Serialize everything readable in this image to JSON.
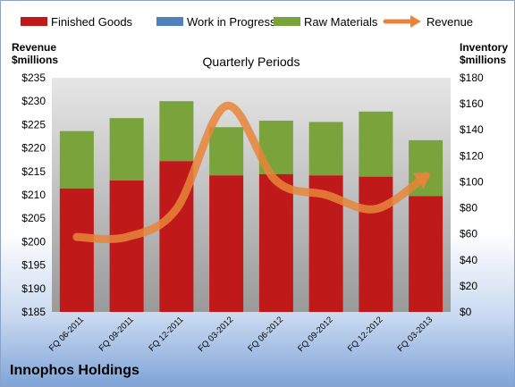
{
  "chart_data": {
    "type": "bar",
    "title": "Quarterly Periods",
    "company": "Innophos Holdings",
    "categories": [
      "FQ 06-2011",
      "FQ 09-2011",
      "FQ 12-2011",
      "FQ 03-2012",
      "FQ 06-2012",
      "FQ 09-2012",
      "FQ 12-2012",
      "FQ 03-2013"
    ],
    "stacked": true,
    "series": [
      {
        "name": "Finished Goods",
        "axis": "right",
        "color": "#c0191a",
        "values": [
          95,
          101,
          116,
          105,
          106,
          105,
          104,
          89
        ]
      },
      {
        "name": "Work in Progress",
        "axis": "right",
        "color": "#4f81bd",
        "values": [
          0,
          0,
          0,
          0,
          0,
          0,
          0,
          0
        ]
      },
      {
        "name": "Raw Materials",
        "axis": "right",
        "color": "#7aa33c",
        "values": [
          44,
          48,
          46,
          37,
          41,
          41,
          50,
          43
        ]
      }
    ],
    "line_series": {
      "name": "Revenue",
      "axis": "left",
      "color": "#e8853a",
      "values": [
        201,
        201,
        207,
        229,
        213,
        210,
        207,
        214
      ]
    },
    "left_axis": {
      "label_line1": "Revenue",
      "label_line2": "$millions",
      "ylim": [
        185,
        235
      ],
      "ticks": [
        "$185",
        "$190",
        "$195",
        "$200",
        "$205",
        "$210",
        "$215",
        "$220",
        "$225",
        "$230",
        "$235"
      ]
    },
    "right_axis": {
      "label_line1": "Inventory",
      "label_line2": "$millions",
      "ylim": [
        0,
        180
      ],
      "ticks": [
        "$0",
        "$20",
        "$40",
        "$60",
        "$80",
        "$100",
        "$120",
        "$140",
        "$160",
        "$180"
      ]
    },
    "legend": {
      "position": "top"
    },
    "grid": false
  }
}
